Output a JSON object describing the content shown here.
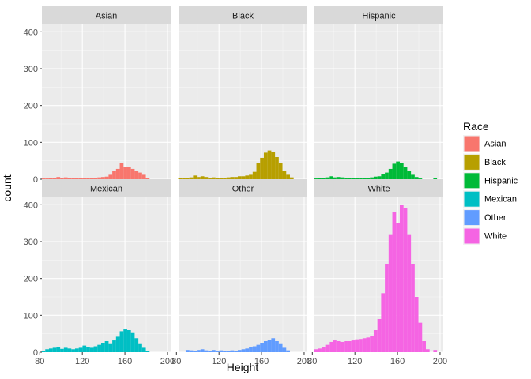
{
  "chart_data": {
    "type": "bar",
    "subtype": "faceted-histogram",
    "title": "",
    "xlabel": "Height",
    "ylabel": "count",
    "xlim": [
      82,
      203
    ],
    "ylim": [
      0,
      420
    ],
    "x_ticks": [
      80,
      120,
      160,
      200
    ],
    "y_ticks": [
      0,
      100,
      200,
      300,
      400
    ],
    "bin_width": 3.5,
    "grid": true,
    "legend": {
      "title": "Race",
      "position": "right",
      "entries": [
        "Asian",
        "Black",
        "Hispanic",
        "Mexican",
        "Other",
        "White"
      ]
    },
    "colors": {
      "Asian": "#F8766D",
      "Black": "#B79F00",
      "Hispanic": "#00BA38",
      "Mexican": "#00BFC4",
      "Other": "#619CFF",
      "White": "#F564E3"
    },
    "panels": [
      {
        "name": "Asian",
        "bins": [
          [
            83.4,
            2
          ],
          [
            86.9,
            2
          ],
          [
            90.4,
            3
          ],
          [
            93.9,
            3
          ],
          [
            97.4,
            6
          ],
          [
            100.9,
            4
          ],
          [
            104.4,
            5
          ],
          [
            107.9,
            4
          ],
          [
            111.4,
            3
          ],
          [
            114.9,
            4
          ],
          [
            118.4,
            3
          ],
          [
            121.9,
            4
          ],
          [
            125.4,
            3
          ],
          [
            128.9,
            3
          ],
          [
            132.4,
            4
          ],
          [
            135.9,
            5
          ],
          [
            139.4,
            6
          ],
          [
            142.9,
            7
          ],
          [
            146.4,
            12
          ],
          [
            149.9,
            23
          ],
          [
            153.4,
            28
          ],
          [
            156.9,
            44
          ],
          [
            160.4,
            34
          ],
          [
            163.9,
            34
          ],
          [
            167.4,
            28
          ],
          [
            170.9,
            22
          ],
          [
            174.4,
            18
          ],
          [
            177.9,
            12
          ],
          [
            181.4,
            4
          ]
        ]
      },
      {
        "name": "Black",
        "bins": [
          [
            83.4,
            3
          ],
          [
            86.9,
            3
          ],
          [
            90.4,
            4
          ],
          [
            93.9,
            5
          ],
          [
            97.4,
            10
          ],
          [
            100.9,
            6
          ],
          [
            104.4,
            8
          ],
          [
            107.9,
            6
          ],
          [
            111.4,
            4
          ],
          [
            114.9,
            5
          ],
          [
            118.4,
            3
          ],
          [
            121.9,
            4
          ],
          [
            125.4,
            4
          ],
          [
            128.9,
            5
          ],
          [
            132.4,
            6
          ],
          [
            135.9,
            6
          ],
          [
            139.4,
            8
          ],
          [
            142.9,
            8
          ],
          [
            146.4,
            10
          ],
          [
            149.9,
            12
          ],
          [
            153.4,
            20
          ],
          [
            156.9,
            44
          ],
          [
            160.4,
            58
          ],
          [
            163.9,
            72
          ],
          [
            167.4,
            78
          ],
          [
            170.9,
            75
          ],
          [
            174.4,
            60
          ],
          [
            177.9,
            44
          ],
          [
            181.4,
            22
          ],
          [
            184.9,
            12
          ],
          [
            188.4,
            5
          ]
        ]
      },
      {
        "name": "Hispanic",
        "bins": [
          [
            83.4,
            2
          ],
          [
            86.9,
            3
          ],
          [
            90.4,
            3
          ],
          [
            93.9,
            5
          ],
          [
            97.4,
            8
          ],
          [
            100.9,
            5
          ],
          [
            104.4,
            6
          ],
          [
            107.9,
            5
          ],
          [
            111.4,
            3
          ],
          [
            114.9,
            4
          ],
          [
            118.4,
            3
          ],
          [
            121.9,
            4
          ],
          [
            125.4,
            3
          ],
          [
            128.9,
            3
          ],
          [
            132.4,
            4
          ],
          [
            135.9,
            5
          ],
          [
            139.4,
            7
          ],
          [
            142.9,
            8
          ],
          [
            146.4,
            14
          ],
          [
            149.9,
            18
          ],
          [
            153.4,
            28
          ],
          [
            156.9,
            42
          ],
          [
            160.4,
            48
          ],
          [
            163.9,
            44
          ],
          [
            167.4,
            33
          ],
          [
            170.9,
            22
          ],
          [
            174.4,
            12
          ],
          [
            177.9,
            6
          ],
          [
            181.4,
            2
          ],
          [
            195.4,
            4
          ]
        ]
      },
      {
        "name": "Mexican",
        "bins": [
          [
            83.4,
            4
          ],
          [
            86.9,
            8
          ],
          [
            90.4,
            10
          ],
          [
            93.9,
            12
          ],
          [
            97.4,
            14
          ],
          [
            100.9,
            9
          ],
          [
            104.4,
            12
          ],
          [
            107.9,
            10
          ],
          [
            111.4,
            8
          ],
          [
            114.9,
            10
          ],
          [
            118.4,
            12
          ],
          [
            121.9,
            18
          ],
          [
            125.4,
            14
          ],
          [
            128.9,
            12
          ],
          [
            132.4,
            16
          ],
          [
            135.9,
            20
          ],
          [
            139.4,
            25
          ],
          [
            142.9,
            30
          ],
          [
            146.4,
            22
          ],
          [
            149.9,
            32
          ],
          [
            153.4,
            42
          ],
          [
            156.9,
            57
          ],
          [
            160.4,
            62
          ],
          [
            163.9,
            60
          ],
          [
            167.4,
            52
          ],
          [
            170.9,
            38
          ],
          [
            174.4,
            22
          ],
          [
            177.9,
            12
          ],
          [
            181.4,
            3
          ]
        ]
      },
      {
        "name": "Other",
        "bins": [
          [
            90.4,
            6
          ],
          [
            93.9,
            5
          ],
          [
            97.4,
            3
          ],
          [
            100.9,
            6
          ],
          [
            104.4,
            8
          ],
          [
            107.9,
            5
          ],
          [
            111.4,
            4
          ],
          [
            114.9,
            6
          ],
          [
            118.4,
            4
          ],
          [
            121.9,
            5
          ],
          [
            125.4,
            4
          ],
          [
            128.9,
            4
          ],
          [
            132.4,
            5
          ],
          [
            135.9,
            4
          ],
          [
            139.4,
            6
          ],
          [
            142.9,
            8
          ],
          [
            146.4,
            10
          ],
          [
            149.9,
            14
          ],
          [
            153.4,
            16
          ],
          [
            156.9,
            20
          ],
          [
            160.4,
            25
          ],
          [
            163.9,
            30
          ],
          [
            167.4,
            33
          ],
          [
            170.9,
            38
          ],
          [
            174.4,
            30
          ],
          [
            177.9,
            22
          ],
          [
            181.4,
            12
          ],
          [
            184.9,
            5
          ]
        ]
      },
      {
        "name": "White",
        "bins": [
          [
            83.4,
            8
          ],
          [
            86.9,
            10
          ],
          [
            90.4,
            14
          ],
          [
            93.9,
            20
          ],
          [
            97.4,
            28
          ],
          [
            100.9,
            32
          ],
          [
            104.4,
            30
          ],
          [
            107.9,
            28
          ],
          [
            111.4,
            30
          ],
          [
            114.9,
            30
          ],
          [
            118.4,
            32
          ],
          [
            121.9,
            35
          ],
          [
            125.4,
            36
          ],
          [
            128.9,
            38
          ],
          [
            132.4,
            40
          ],
          [
            135.9,
            45
          ],
          [
            139.4,
            60
          ],
          [
            142.9,
            90
          ],
          [
            146.4,
            160
          ],
          [
            149.9,
            240
          ],
          [
            153.4,
            320
          ],
          [
            156.9,
            380
          ],
          [
            160.4,
            350
          ],
          [
            163.9,
            400
          ],
          [
            167.4,
            390
          ],
          [
            170.9,
            320
          ],
          [
            174.4,
            240
          ],
          [
            177.9,
            150
          ],
          [
            181.4,
            80
          ],
          [
            184.9,
            30
          ],
          [
            188.4,
            8
          ],
          [
            195.4,
            6
          ]
        ]
      }
    ]
  }
}
